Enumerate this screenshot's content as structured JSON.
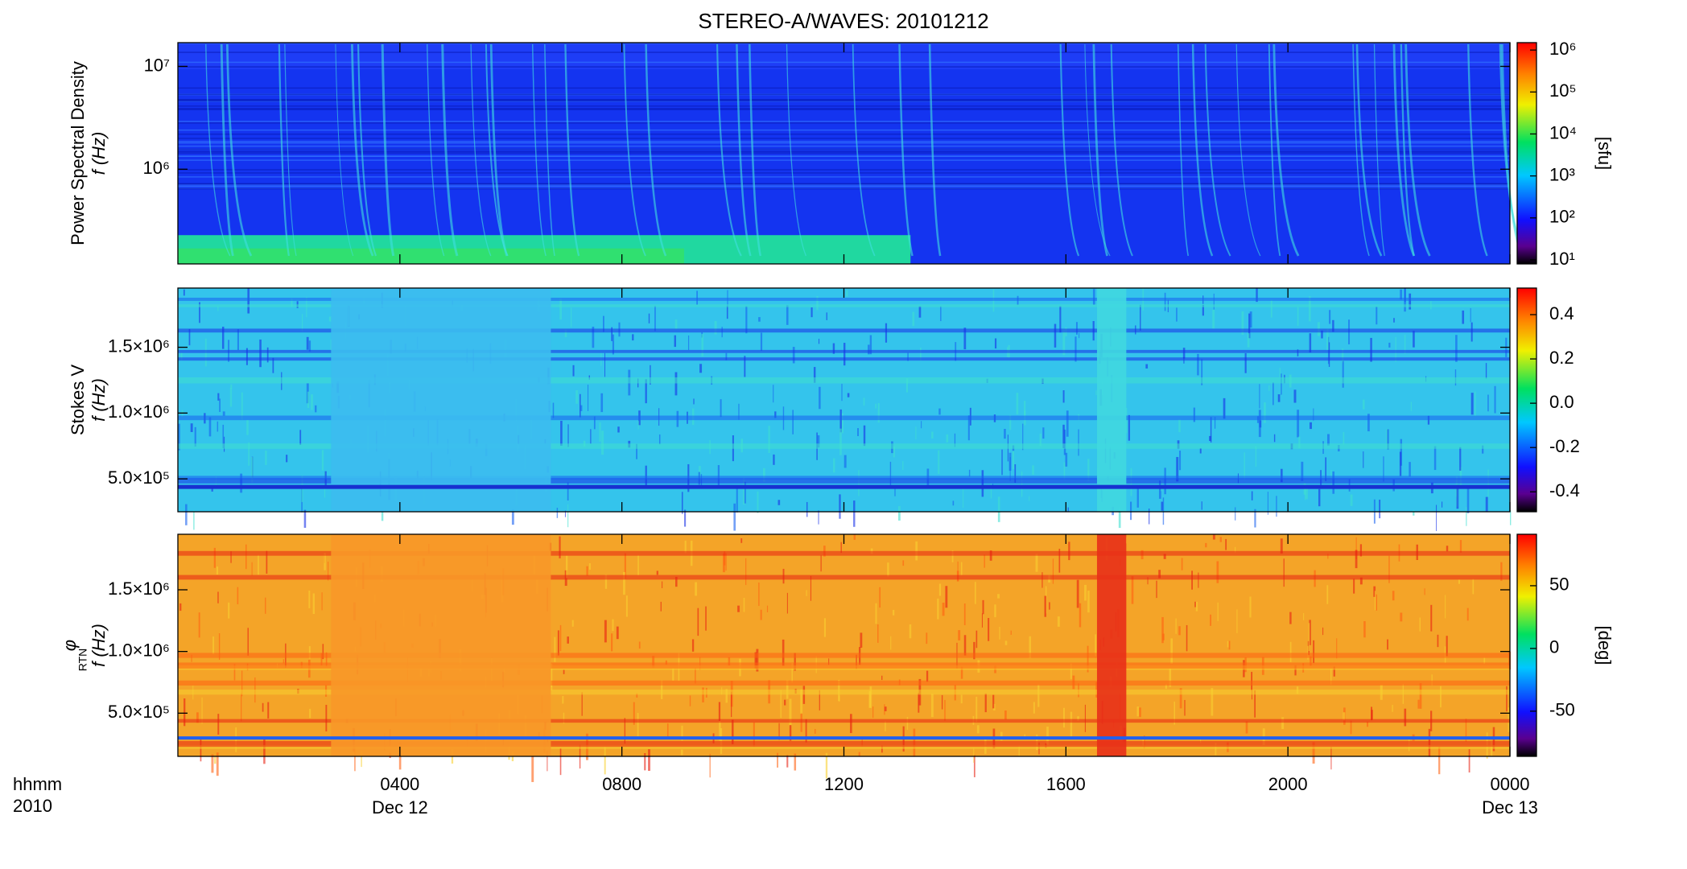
{
  "chart_data": {
    "type": "spectrogram",
    "title": "STEREO-A/WAVES: 20101212",
    "xlabel": "hhmm",
    "year": "2010",
    "xlim": [
      0,
      24
    ],
    "xticks": [
      {
        "value": 4,
        "label": "0400"
      },
      {
        "value": 8,
        "label": "0800"
      },
      {
        "value": 12,
        "label": "1200"
      },
      {
        "value": 16,
        "label": "1600"
      },
      {
        "value": 20,
        "label": "2000"
      },
      {
        "value": 24,
        "label": "0000"
      }
    ],
    "date_labels": [
      {
        "value": 4,
        "label": "Dec 12"
      },
      {
        "value": 24,
        "label": "Dec 13"
      }
    ],
    "panels": [
      {
        "ylabel": [
          "Power Spectral Density",
          "f (Hz)"
        ],
        "log_y": true,
        "ylim": [
          120000,
          17000000
        ],
        "yticks": [
          {
            "value": 1000000,
            "label": "10⁶"
          },
          {
            "value": 10000000,
            "label": "10⁷"
          }
        ],
        "log_c": true,
        "clim": [
          8,
          1500000
        ],
        "cticks": [
          {
            "value": 10,
            "label": "10¹"
          },
          {
            "value": 100,
            "label": "10²"
          },
          {
            "value": 1000,
            "label": "10³"
          },
          {
            "value": 10000,
            "label": "10⁴"
          },
          {
            "value": 100000,
            "label": "10⁵"
          },
          {
            "value": 1000000,
            "label": "10⁶"
          }
        ],
        "clabel": "[sfu]"
      },
      {
        "ylabel": [
          "Stokes V",
          "f (Hz)"
        ],
        "log_y": false,
        "ylim": [
          250000,
          1950000
        ],
        "yticks": [
          {
            "value": 500000,
            "label": "5.0×10⁵"
          },
          {
            "value": 1000000,
            "label": "1.0×10⁶"
          },
          {
            "value": 1500000,
            "label": "1.5×10⁶"
          }
        ],
        "log_c": false,
        "clim": [
          -0.49,
          0.52
        ],
        "cticks": [
          -0.4,
          -0.2,
          {
            "value": 0,
            "label": "0.0"
          },
          0.2,
          0.4
        ]
      },
      {
        "ylabel": [
          "φ",
          "f (Hz)"
        ],
        "ylabel_sub": "RTN",
        "log_y": false,
        "ylim": [
          150000,
          1950000
        ],
        "yticks": [
          {
            "value": 500000,
            "label": "5.0×10⁵"
          },
          {
            "value": 1000000,
            "label": "1.0×10⁶"
          },
          {
            "value": 1500000,
            "label": "1.5×10⁶"
          }
        ],
        "log_c": false,
        "clim": [
          -86,
          91
        ],
        "cticks": [
          -50,
          0,
          50
        ],
        "clabel": "[deg]"
      }
    ]
  }
}
